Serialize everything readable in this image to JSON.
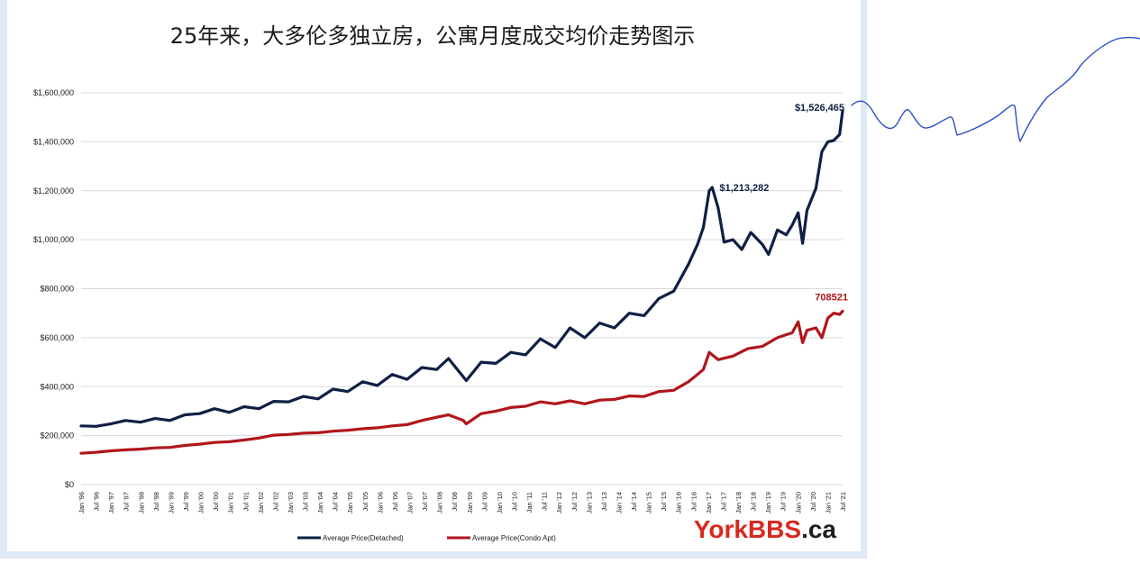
{
  "colors": {
    "detached": "#0f1f45",
    "condo": "#b0161b",
    "grid": "#d9d9d9",
    "text": "#1a1a1a",
    "brand_red": "#d8291e",
    "brand_dark": "#1d1d1d",
    "doodle": "#2a4fc4"
  },
  "brand": {
    "york": "YorkBBS",
    "ca": ".ca"
  },
  "chart_data": {
    "type": "line",
    "title": "25年来，大多伦多独立房，公寓月度成交均价走势图示",
    "ylim": [
      0,
      1600000
    ],
    "yticks": [
      {
        "value": 0,
        "label": "$0"
      },
      {
        "value": 200000,
        "label": "$200,000"
      },
      {
        "value": 400000,
        "label": "$400,000"
      },
      {
        "value": 600000,
        "label": "$600,000"
      },
      {
        "value": 800000,
        "label": "$800,000"
      },
      {
        "value": 1000000,
        "label": "$1,000,000"
      },
      {
        "value": 1200000,
        "label": "$1,200,000"
      },
      {
        "value": 1400000,
        "label": "$1,400,000"
      },
      {
        "value": 1600000,
        "label": "$1,600,000"
      }
    ],
    "xticks": [
      "Jan '96",
      "Jul '96",
      "Jan '97",
      "Jul '97",
      "Jan '98",
      "Jul '98",
      "Jan '99",
      "Jul '99",
      "Jan '00",
      "Jul '00",
      "Jan '01",
      "Jul '01",
      "Jan '02",
      "Jul '02",
      "Jan '03",
      "Jul '03",
      "Jan '04",
      "Jul '04",
      "Jan '05",
      "Jul '05",
      "Jan '06",
      "Jul '06",
      "Jan '07",
      "Jul '07",
      "Jan '08",
      "Jul '08",
      "Jan '09",
      "Jul '09",
      "Jan '10",
      "Jul '10",
      "Jan '11",
      "Jul '11",
      "Jan '12",
      "Jul '12",
      "Jan '13",
      "Jul '13",
      "Jan '14",
      "Jul '14",
      "Jan '15",
      "Jul '15",
      "Jan '16",
      "Jul '16",
      "Jan '17",
      "Jul '17",
      "Jan '18",
      "Jul '18",
      "Jan '19",
      "Jul '19",
      "Jan '20",
      "Jul '20",
      "Jan '21",
      "Jul '21"
    ],
    "xrange": [
      1996.0,
      2021.7
    ],
    "grid": true,
    "legend_position": "bottom",
    "series": [
      {
        "name": "Average Price(Detached)",
        "color": "#0f1f45",
        "points": [
          [
            1996.0,
            240000
          ],
          [
            1996.5,
            238000
          ],
          [
            1997.0,
            248000
          ],
          [
            1997.5,
            262000
          ],
          [
            1998.0,
            255000
          ],
          [
            1998.5,
            270000
          ],
          [
            1999.0,
            262000
          ],
          [
            1999.5,
            285000
          ],
          [
            2000.0,
            290000
          ],
          [
            2000.5,
            310000
          ],
          [
            2001.0,
            295000
          ],
          [
            2001.5,
            318000
          ],
          [
            2002.0,
            310000
          ],
          [
            2002.5,
            340000
          ],
          [
            2003.0,
            338000
          ],
          [
            2003.5,
            360000
          ],
          [
            2004.0,
            350000
          ],
          [
            2004.5,
            390000
          ],
          [
            2005.0,
            380000
          ],
          [
            2005.5,
            420000
          ],
          [
            2006.0,
            405000
          ],
          [
            2006.5,
            450000
          ],
          [
            2007.0,
            430000
          ],
          [
            2007.5,
            478000
          ],
          [
            2008.0,
            470000
          ],
          [
            2008.4,
            515000
          ],
          [
            2008.9,
            440000
          ],
          [
            2009.0,
            425000
          ],
          [
            2009.5,
            500000
          ],
          [
            2010.0,
            495000
          ],
          [
            2010.5,
            540000
          ],
          [
            2011.0,
            530000
          ],
          [
            2011.5,
            595000
          ],
          [
            2012.0,
            560000
          ],
          [
            2012.5,
            640000
          ],
          [
            2013.0,
            600000
          ],
          [
            2013.5,
            660000
          ],
          [
            2014.0,
            640000
          ],
          [
            2014.5,
            700000
          ],
          [
            2015.0,
            690000
          ],
          [
            2015.5,
            760000
          ],
          [
            2016.0,
            790000
          ],
          [
            2016.5,
            900000
          ],
          [
            2016.8,
            980000
          ],
          [
            2017.0,
            1050000
          ],
          [
            2017.2,
            1200000
          ],
          [
            2017.3,
            1213282
          ],
          [
            2017.5,
            1130000
          ],
          [
            2017.7,
            990000
          ],
          [
            2018.0,
            1000000
          ],
          [
            2018.3,
            960000
          ],
          [
            2018.6,
            1030000
          ],
          [
            2019.0,
            980000
          ],
          [
            2019.2,
            940000
          ],
          [
            2019.5,
            1040000
          ],
          [
            2019.8,
            1020000
          ],
          [
            2020.0,
            1060000
          ],
          [
            2020.2,
            1110000
          ],
          [
            2020.35,
            985000
          ],
          [
            2020.5,
            1120000
          ],
          [
            2020.8,
            1210000
          ],
          [
            2021.0,
            1360000
          ],
          [
            2021.2,
            1400000
          ],
          [
            2021.4,
            1405000
          ],
          [
            2021.6,
            1430000
          ],
          [
            2021.7,
            1526465
          ]
        ]
      },
      {
        "name": "Average Price(Condo Apt)",
        "color": "#b0161b",
        "points": [
          [
            1996.0,
            128000
          ],
          [
            1996.5,
            132000
          ],
          [
            1997.0,
            138000
          ],
          [
            1997.5,
            142000
          ],
          [
            1998.0,
            145000
          ],
          [
            1998.5,
            150000
          ],
          [
            1999.0,
            152000
          ],
          [
            1999.5,
            160000
          ],
          [
            2000.0,
            165000
          ],
          [
            2000.5,
            172000
          ],
          [
            2001.0,
            175000
          ],
          [
            2001.5,
            182000
          ],
          [
            2002.0,
            190000
          ],
          [
            2002.5,
            202000
          ],
          [
            2003.0,
            205000
          ],
          [
            2003.5,
            210000
          ],
          [
            2004.0,
            212000
          ],
          [
            2004.5,
            218000
          ],
          [
            2005.0,
            222000
          ],
          [
            2005.5,
            228000
          ],
          [
            2006.0,
            232000
          ],
          [
            2006.5,
            240000
          ],
          [
            2007.0,
            245000
          ],
          [
            2007.5,
            262000
          ],
          [
            2008.0,
            275000
          ],
          [
            2008.4,
            285000
          ],
          [
            2008.9,
            262000
          ],
          [
            2009.0,
            248000
          ],
          [
            2009.5,
            290000
          ],
          [
            2010.0,
            300000
          ],
          [
            2010.5,
            315000
          ],
          [
            2011.0,
            320000
          ],
          [
            2011.5,
            338000
          ],
          [
            2012.0,
            330000
          ],
          [
            2012.5,
            342000
          ],
          [
            2013.0,
            330000
          ],
          [
            2013.5,
            345000
          ],
          [
            2014.0,
            348000
          ],
          [
            2014.5,
            362000
          ],
          [
            2015.0,
            360000
          ],
          [
            2015.5,
            380000
          ],
          [
            2016.0,
            385000
          ],
          [
            2016.5,
            420000
          ],
          [
            2016.8,
            450000
          ],
          [
            2017.0,
            470000
          ],
          [
            2017.2,
            540000
          ],
          [
            2017.5,
            510000
          ],
          [
            2018.0,
            525000
          ],
          [
            2018.5,
            555000
          ],
          [
            2019.0,
            565000
          ],
          [
            2019.5,
            600000
          ],
          [
            2020.0,
            620000
          ],
          [
            2020.2,
            665000
          ],
          [
            2020.35,
            580000
          ],
          [
            2020.5,
            630000
          ],
          [
            2020.8,
            640000
          ],
          [
            2021.0,
            600000
          ],
          [
            2021.2,
            680000
          ],
          [
            2021.4,
            700000
          ],
          [
            2021.6,
            695000
          ],
          [
            2021.7,
            708521
          ]
        ]
      }
    ],
    "annotations": [
      {
        "series": 0,
        "x": 2021.7,
        "y": 1526465,
        "label": "$1,526,465"
      },
      {
        "series": 0,
        "x": 2017.3,
        "y": 1213282,
        "label": "$1,213,282"
      },
      {
        "series": 1,
        "x": 2021.7,
        "y": 708521,
        "label": "708521"
      }
    ]
  }
}
